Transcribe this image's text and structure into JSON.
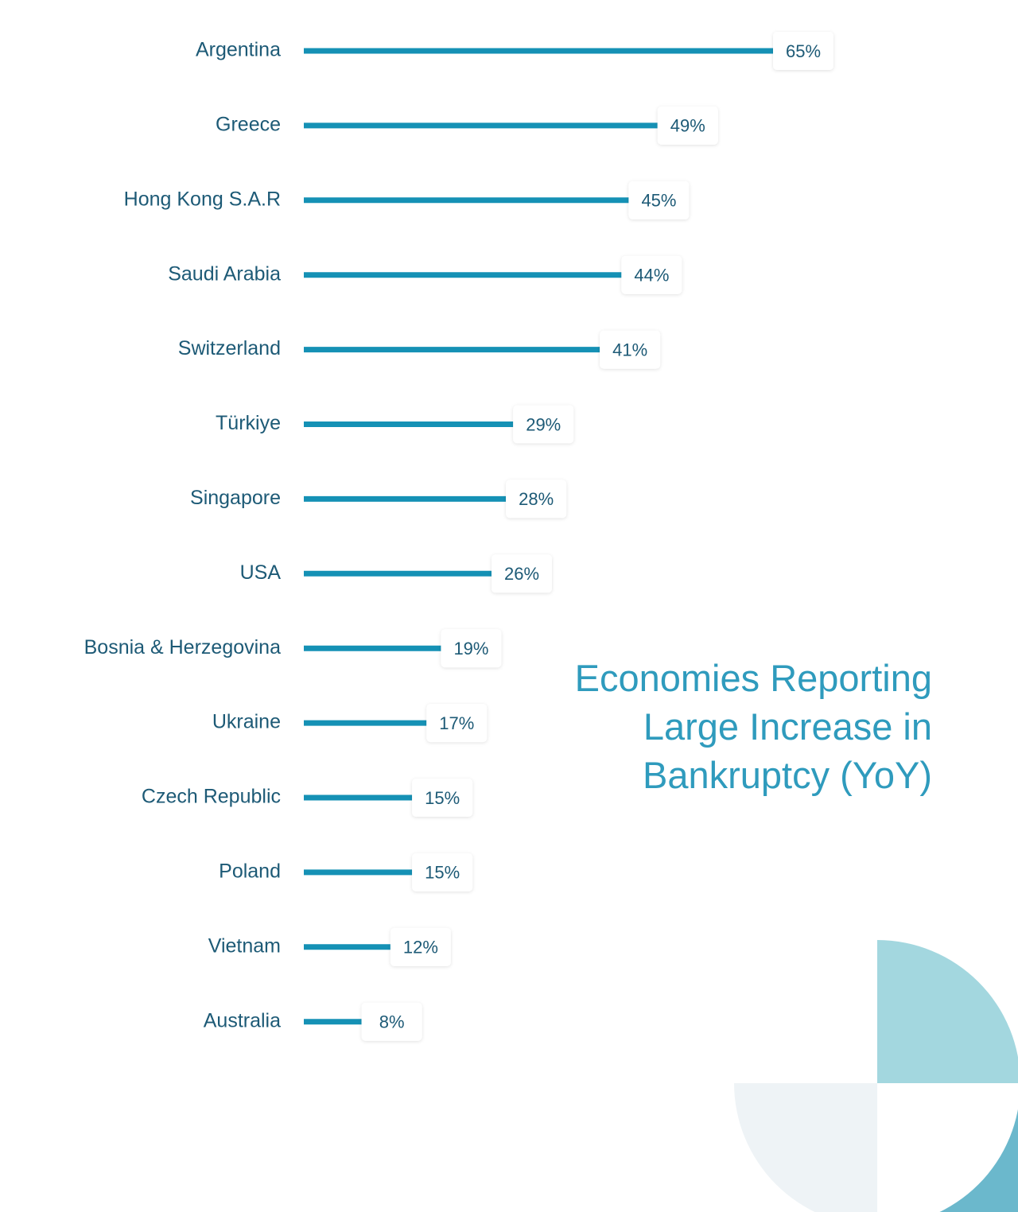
{
  "chart_data": {
    "type": "bar",
    "orientation": "horizontal",
    "title": "Economies Reporting Large Increase in Bankruptcy (YoY)",
    "categories": [
      "Argentina",
      "Greece",
      "Hong Kong S.A.R",
      "Saudi Arabia",
      "Switzerland",
      "Türkiye",
      "Singapore",
      "USA",
      "Bosnia & Herzegovina",
      "Ukraine",
      "Czech Republic",
      "Poland",
      "Vietnam",
      "Australia"
    ],
    "values": [
      65,
      49,
      45,
      44,
      41,
      29,
      28,
      26,
      19,
      17,
      15,
      15,
      12,
      8
    ],
    "value_labels": [
      "65%",
      "49%",
      "45%",
      "44%",
      "41%",
      "29%",
      "28%",
      "26%",
      "19%",
      "17%",
      "15%",
      "15%",
      "12%",
      "8%"
    ],
    "color": "#1591b5"
  }
}
